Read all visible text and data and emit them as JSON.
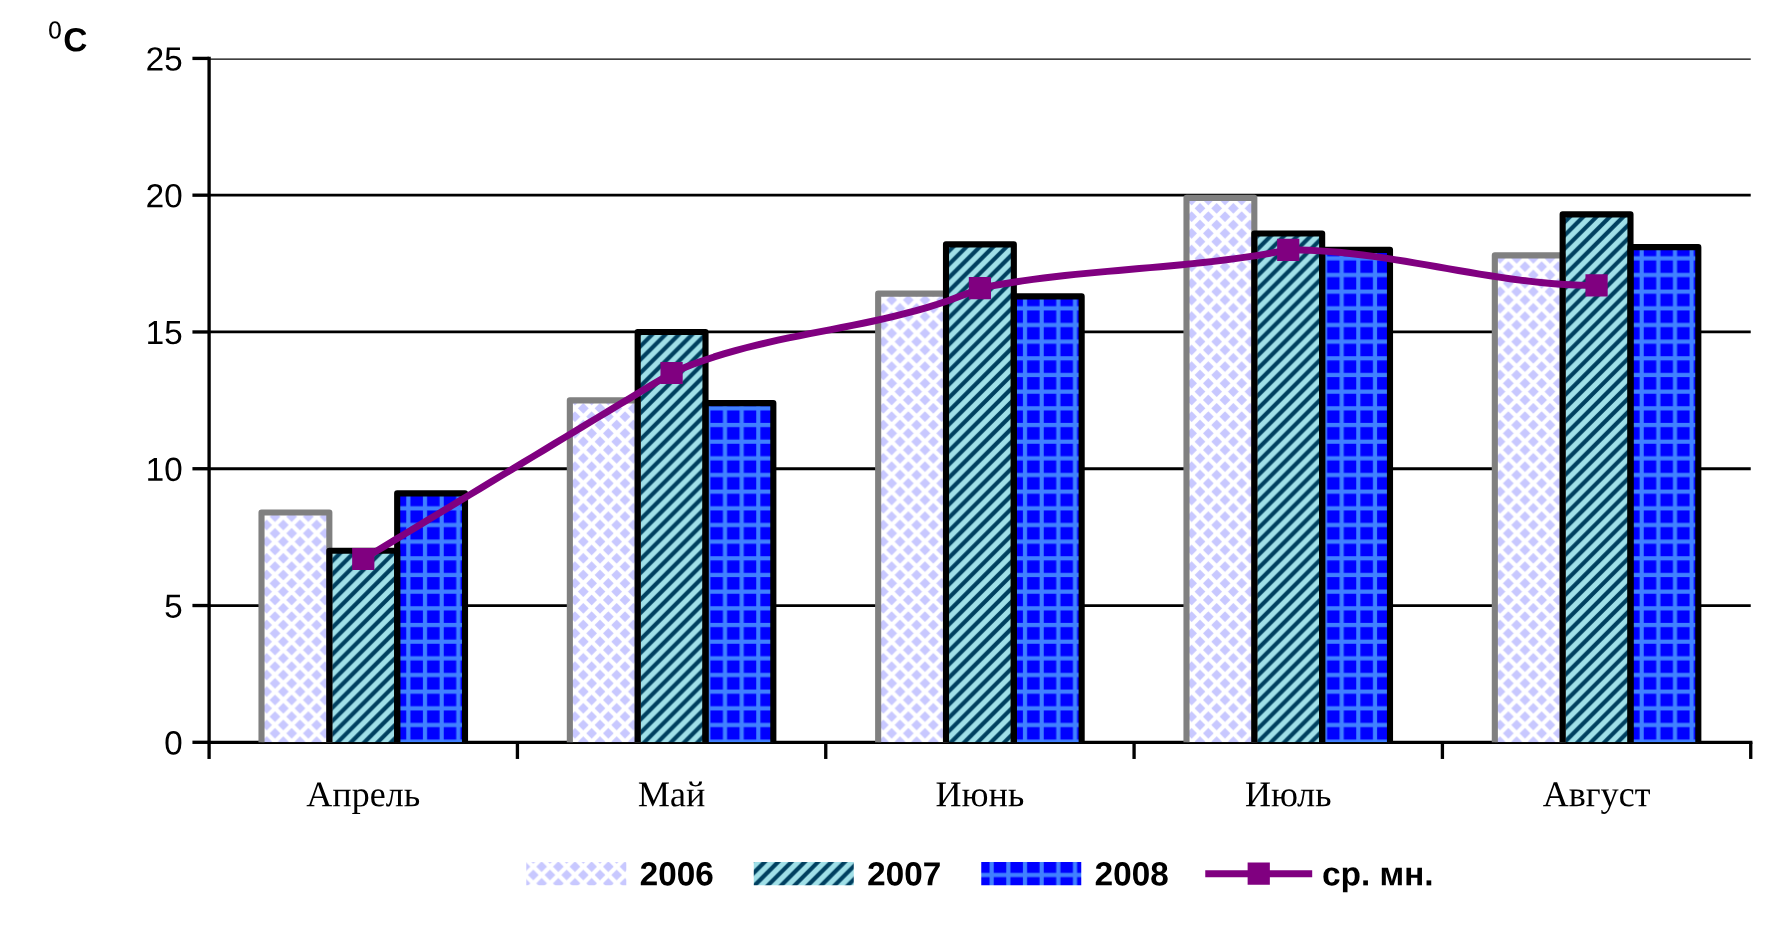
{
  "chart_data": {
    "type": "bar",
    "ylabel": "$^{0}$C",
    "categories": [
      "Апрель",
      "Май",
      "Июнь",
      "Июль",
      "Август"
    ],
    "series": [
      {
        "name": "2006",
        "color": "#c8c8ff",
        "values": [
          8.4,
          12.5,
          16.4,
          19.9,
          17.8
        ]
      },
      {
        "name": "2007",
        "color": "#a0e0e8",
        "values": [
          7.0,
          15.0,
          18.2,
          18.6,
          19.3
        ]
      },
      {
        "name": "2008",
        "color": "#0000ff",
        "values": [
          9.1,
          12.4,
          16.3,
          18.0,
          18.1
        ]
      },
      {
        "name": "ср. мн.",
        "type": "line",
        "color": "#800080",
        "marker": "square",
        "values": [
          6.7,
          13.5,
          16.6,
          18.0,
          16.7
        ]
      }
    ],
    "ylim": [
      0,
      25
    ],
    "yticks": [
      0,
      5,
      10,
      15,
      20,
      25
    ],
    "grid": "y",
    "legend": "bottom"
  }
}
